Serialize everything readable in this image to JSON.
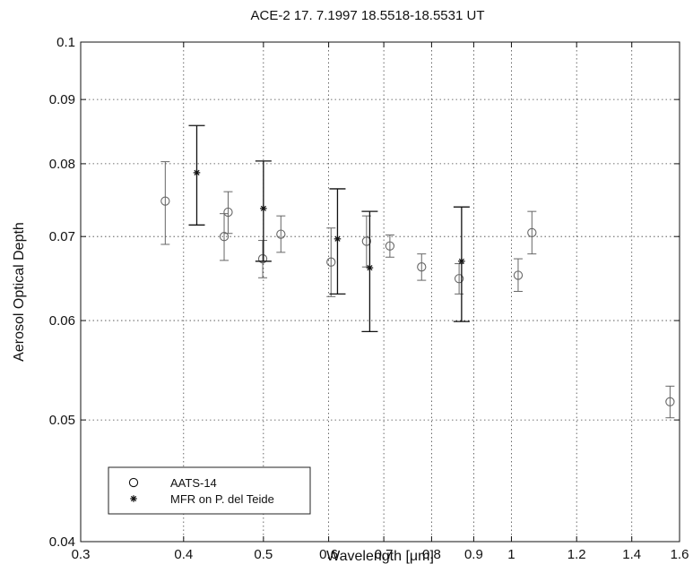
{
  "chart_data": {
    "type": "scatter",
    "title": "ACE-2 17. 7.1997 18.5518-18.5531 UT",
    "xlabel": "Wavelength [μm]",
    "ylabel": "Aerosol Optical Depth",
    "xscale": "log",
    "yscale": "log",
    "xlim": [
      0.3,
      1.6
    ],
    "ylim": [
      0.04,
      0.1
    ],
    "xticks": [
      0.3,
      0.4,
      0.5,
      0.6,
      0.7,
      0.8,
      0.9,
      1,
      1.2,
      1.4,
      1.6
    ],
    "xtick_labels": [
      "0.3",
      "0.4",
      "0.5",
      "0.6",
      "0.7",
      "0.8",
      "0.9",
      "1",
      "1.2",
      "1.4",
      "1.6"
    ],
    "yticks": [
      0.04,
      0.05,
      0.06,
      0.07,
      0.08,
      0.09,
      0.1
    ],
    "ytick_labels": [
      "0.04",
      "0.05",
      "0.06",
      "0.07",
      "0.08",
      "0.09",
      "0.1"
    ],
    "grid": true,
    "legend_position": "bottom-left",
    "series": [
      {
        "name": "AATS-14",
        "marker": "circle",
        "color": "#666666",
        "points": [
          {
            "x": 0.38,
            "y": 0.0747,
            "ylo": 0.069,
            "yhi": 0.0803
          },
          {
            "x": 0.448,
            "y": 0.07,
            "ylo": 0.067,
            "yhi": 0.073
          },
          {
            "x": 0.453,
            "y": 0.0732,
            "ylo": 0.0704,
            "yhi": 0.076
          },
          {
            "x": 0.499,
            "y": 0.0672,
            "ylo": 0.0649,
            "yhi": 0.0695
          },
          {
            "x": 0.525,
            "y": 0.0703,
            "ylo": 0.068,
            "yhi": 0.0727
          },
          {
            "x": 0.604,
            "y": 0.0668,
            "ylo": 0.0627,
            "yhi": 0.0711
          },
          {
            "x": 0.667,
            "y": 0.0694,
            "ylo": 0.0662,
            "yhi": 0.0727
          },
          {
            "x": 0.712,
            "y": 0.0688,
            "ylo": 0.0674,
            "yhi": 0.0702
          },
          {
            "x": 0.778,
            "y": 0.0662,
            "ylo": 0.0646,
            "yhi": 0.0678
          },
          {
            "x": 0.864,
            "y": 0.0648,
            "ylo": 0.063,
            "yhi": 0.0666
          },
          {
            "x": 1.019,
            "y": 0.0652,
            "ylo": 0.0633,
            "yhi": 0.0672
          },
          {
            "x": 1.059,
            "y": 0.0705,
            "ylo": 0.0678,
            "yhi": 0.0733
          },
          {
            "x": 1.558,
            "y": 0.0517,
            "ylo": 0.0502,
            "yhi": 0.0532
          }
        ]
      },
      {
        "name": "MFR on P. del Teide",
        "marker": "asterisk",
        "color": "#111111",
        "points": [
          {
            "x": 0.415,
            "y": 0.0787,
            "ylo": 0.0715,
            "yhi": 0.0858
          },
          {
            "x": 0.5,
            "y": 0.0737,
            "ylo": 0.0669,
            "yhi": 0.0804
          },
          {
            "x": 0.615,
            "y": 0.0697,
            "ylo": 0.063,
            "yhi": 0.0764
          },
          {
            "x": 0.673,
            "y": 0.0661,
            "ylo": 0.0588,
            "yhi": 0.0733
          },
          {
            "x": 0.87,
            "y": 0.0669,
            "ylo": 0.0599,
            "yhi": 0.0739
          }
        ]
      }
    ]
  }
}
